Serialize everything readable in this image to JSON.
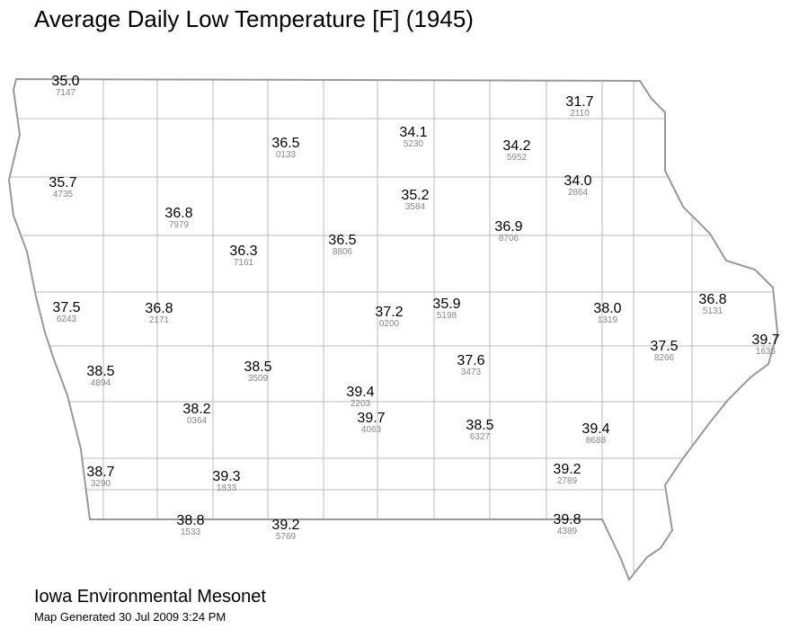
{
  "title": "Average Daily Low Temperature [F] (1945)",
  "stations": [
    {
      "value": "35.0",
      "id": "7147"
    },
    {
      "value": "31.7",
      "id": "2110"
    },
    {
      "value": "36.5",
      "id": "0133"
    },
    {
      "value": "34.1",
      "id": "5230"
    },
    {
      "value": "34.2",
      "id": "5952"
    },
    {
      "value": "35.7",
      "id": "4735"
    },
    {
      "value": "34.0",
      "id": "2864"
    },
    {
      "value": "35.2",
      "id": "3584"
    },
    {
      "value": "36.8",
      "id": "7979"
    },
    {
      "value": "36.9",
      "id": "8706"
    },
    {
      "value": "36.3",
      "id": "7161"
    },
    {
      "value": "36.5",
      "id": "8806"
    },
    {
      "value": "37.5",
      "id": "6243"
    },
    {
      "value": "36.8",
      "id": "2171"
    },
    {
      "value": "37.2",
      "id": "0200"
    },
    {
      "value": "35.9",
      "id": "5198"
    },
    {
      "value": "38.0",
      "id": "1319"
    },
    {
      "value": "36.8",
      "id": "5131"
    },
    {
      "value": "37.5",
      "id": "8266"
    },
    {
      "value": "39.7",
      "id": "1635"
    },
    {
      "value": "38.5",
      "id": "4894"
    },
    {
      "value": "38.5",
      "id": "3509"
    },
    {
      "value": "37.6",
      "id": "3473"
    },
    {
      "value": "39.4",
      "id": "2203"
    },
    {
      "value": "38.2",
      "id": "0364"
    },
    {
      "value": "39.7",
      "id": "4063"
    },
    {
      "value": "38.5",
      "id": "6327"
    },
    {
      "value": "39.4",
      "id": "8688"
    },
    {
      "value": "38.7",
      "id": "3290"
    },
    {
      "value": "39.3",
      "id": "1833"
    },
    {
      "value": "39.2",
      "id": "2789"
    },
    {
      "value": "38.8",
      "id": "1533"
    },
    {
      "value": "39.2",
      "id": "5769"
    },
    {
      "value": "39.8",
      "id": "4389"
    }
  ],
  "footer": {
    "org": "Iowa Environmental Mesonet",
    "generated": "Map Generated 30 Jul 2009 3:24 PM"
  }
}
